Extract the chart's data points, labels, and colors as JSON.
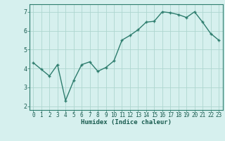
{
  "x": [
    0,
    1,
    2,
    3,
    4,
    5,
    6,
    7,
    8,
    9,
    10,
    11,
    12,
    13,
    14,
    15,
    16,
    17,
    18,
    19,
    20,
    21,
    22,
    23
  ],
  "y": [
    4.3,
    3.95,
    3.6,
    4.2,
    2.3,
    3.35,
    4.2,
    4.35,
    3.85,
    4.05,
    4.4,
    5.5,
    5.75,
    6.05,
    6.45,
    6.5,
    7.0,
    6.95,
    6.85,
    6.7,
    7.0,
    6.45,
    5.85,
    5.5
  ],
  "line_color": "#2e7d6e",
  "marker": "+",
  "bg_color": "#d6f0ee",
  "grid_color": "#aed6d0",
  "xlabel": "Humidex (Indice chaleur)",
  "xlim": [
    -0.5,
    23.5
  ],
  "ylim": [
    1.8,
    7.4
  ],
  "yticks": [
    2,
    3,
    4,
    5,
    6,
    7
  ],
  "xticks": [
    0,
    1,
    2,
    3,
    4,
    5,
    6,
    7,
    8,
    9,
    10,
    11,
    12,
    13,
    14,
    15,
    16,
    17,
    18,
    19,
    20,
    21,
    22,
    23
  ],
  "line_width": 1.0,
  "marker_size": 3.5,
  "font_color": "#1a5c50",
  "axis_color": "#2e7d6e",
  "spine_color": "#2e7d6e",
  "tick_fontsize": 5.5,
  "xlabel_fontsize": 6.5
}
